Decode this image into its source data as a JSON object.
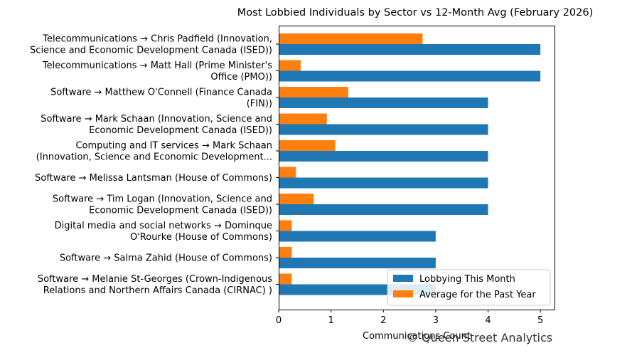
{
  "chart_data": {
    "type": "bar",
    "orientation": "horizontal",
    "title": "Most Lobbied Individuals by Sector vs 12-Month Avg (February 2026)",
    "xlabel": "Communications Count",
    "ylabel": "",
    "xlim": [
      0,
      5.27
    ],
    "x_ticks": [
      0,
      1,
      2,
      3,
      4,
      5
    ],
    "grid": false,
    "legend_position": "bottom-right",
    "categories": [
      [
        "Telecommunications → Chris Padfield (Innovation,",
        "Science and Economic Development Canada (ISED))"
      ],
      [
        "Telecommunications → Matt Hall (Prime Minister's",
        "Office (PMO))"
      ],
      [
        "Software → Matthew O'Connell (Finance Canada",
        "(FIN))"
      ],
      [
        "Software → Mark Schaan (Innovation, Science and",
        "Economic Development Canada (ISED))"
      ],
      [
        "Computing and IT services → Mark Schaan",
        "(Innovation, Science and Economic Development..."
      ],
      [
        "Software → Melissa Lantsman (House of Commons)"
      ],
      [
        "Software → Tim Logan (Innovation, Science and",
        "Economic Development Canada (ISED))"
      ],
      [
        "Digital media and social networks → Dominque",
        "O'Rourke (House of Commons)"
      ],
      [
        "Software → Salma Zahid (House of Commons)"
      ],
      [
        "Software → Melanie St-Georges (Crown-Indigenous",
        "Relations and Northern Affairs Canada (CIRNAC) )"
      ]
    ],
    "series": [
      {
        "name": "Lobbying This Month",
        "color": "#1f77b4",
        "values": [
          5,
          5,
          4,
          4,
          4,
          4,
          4,
          3,
          3,
          3
        ]
      },
      {
        "name": "Average for the Past Year",
        "color": "#ff7f0e",
        "values": [
          2.75,
          0.42,
          1.33,
          0.92,
          1.08,
          0.33,
          0.67,
          0.25,
          0.25,
          0.25
        ]
      }
    ]
  },
  "watermark": "© Queen Street Analytics"
}
